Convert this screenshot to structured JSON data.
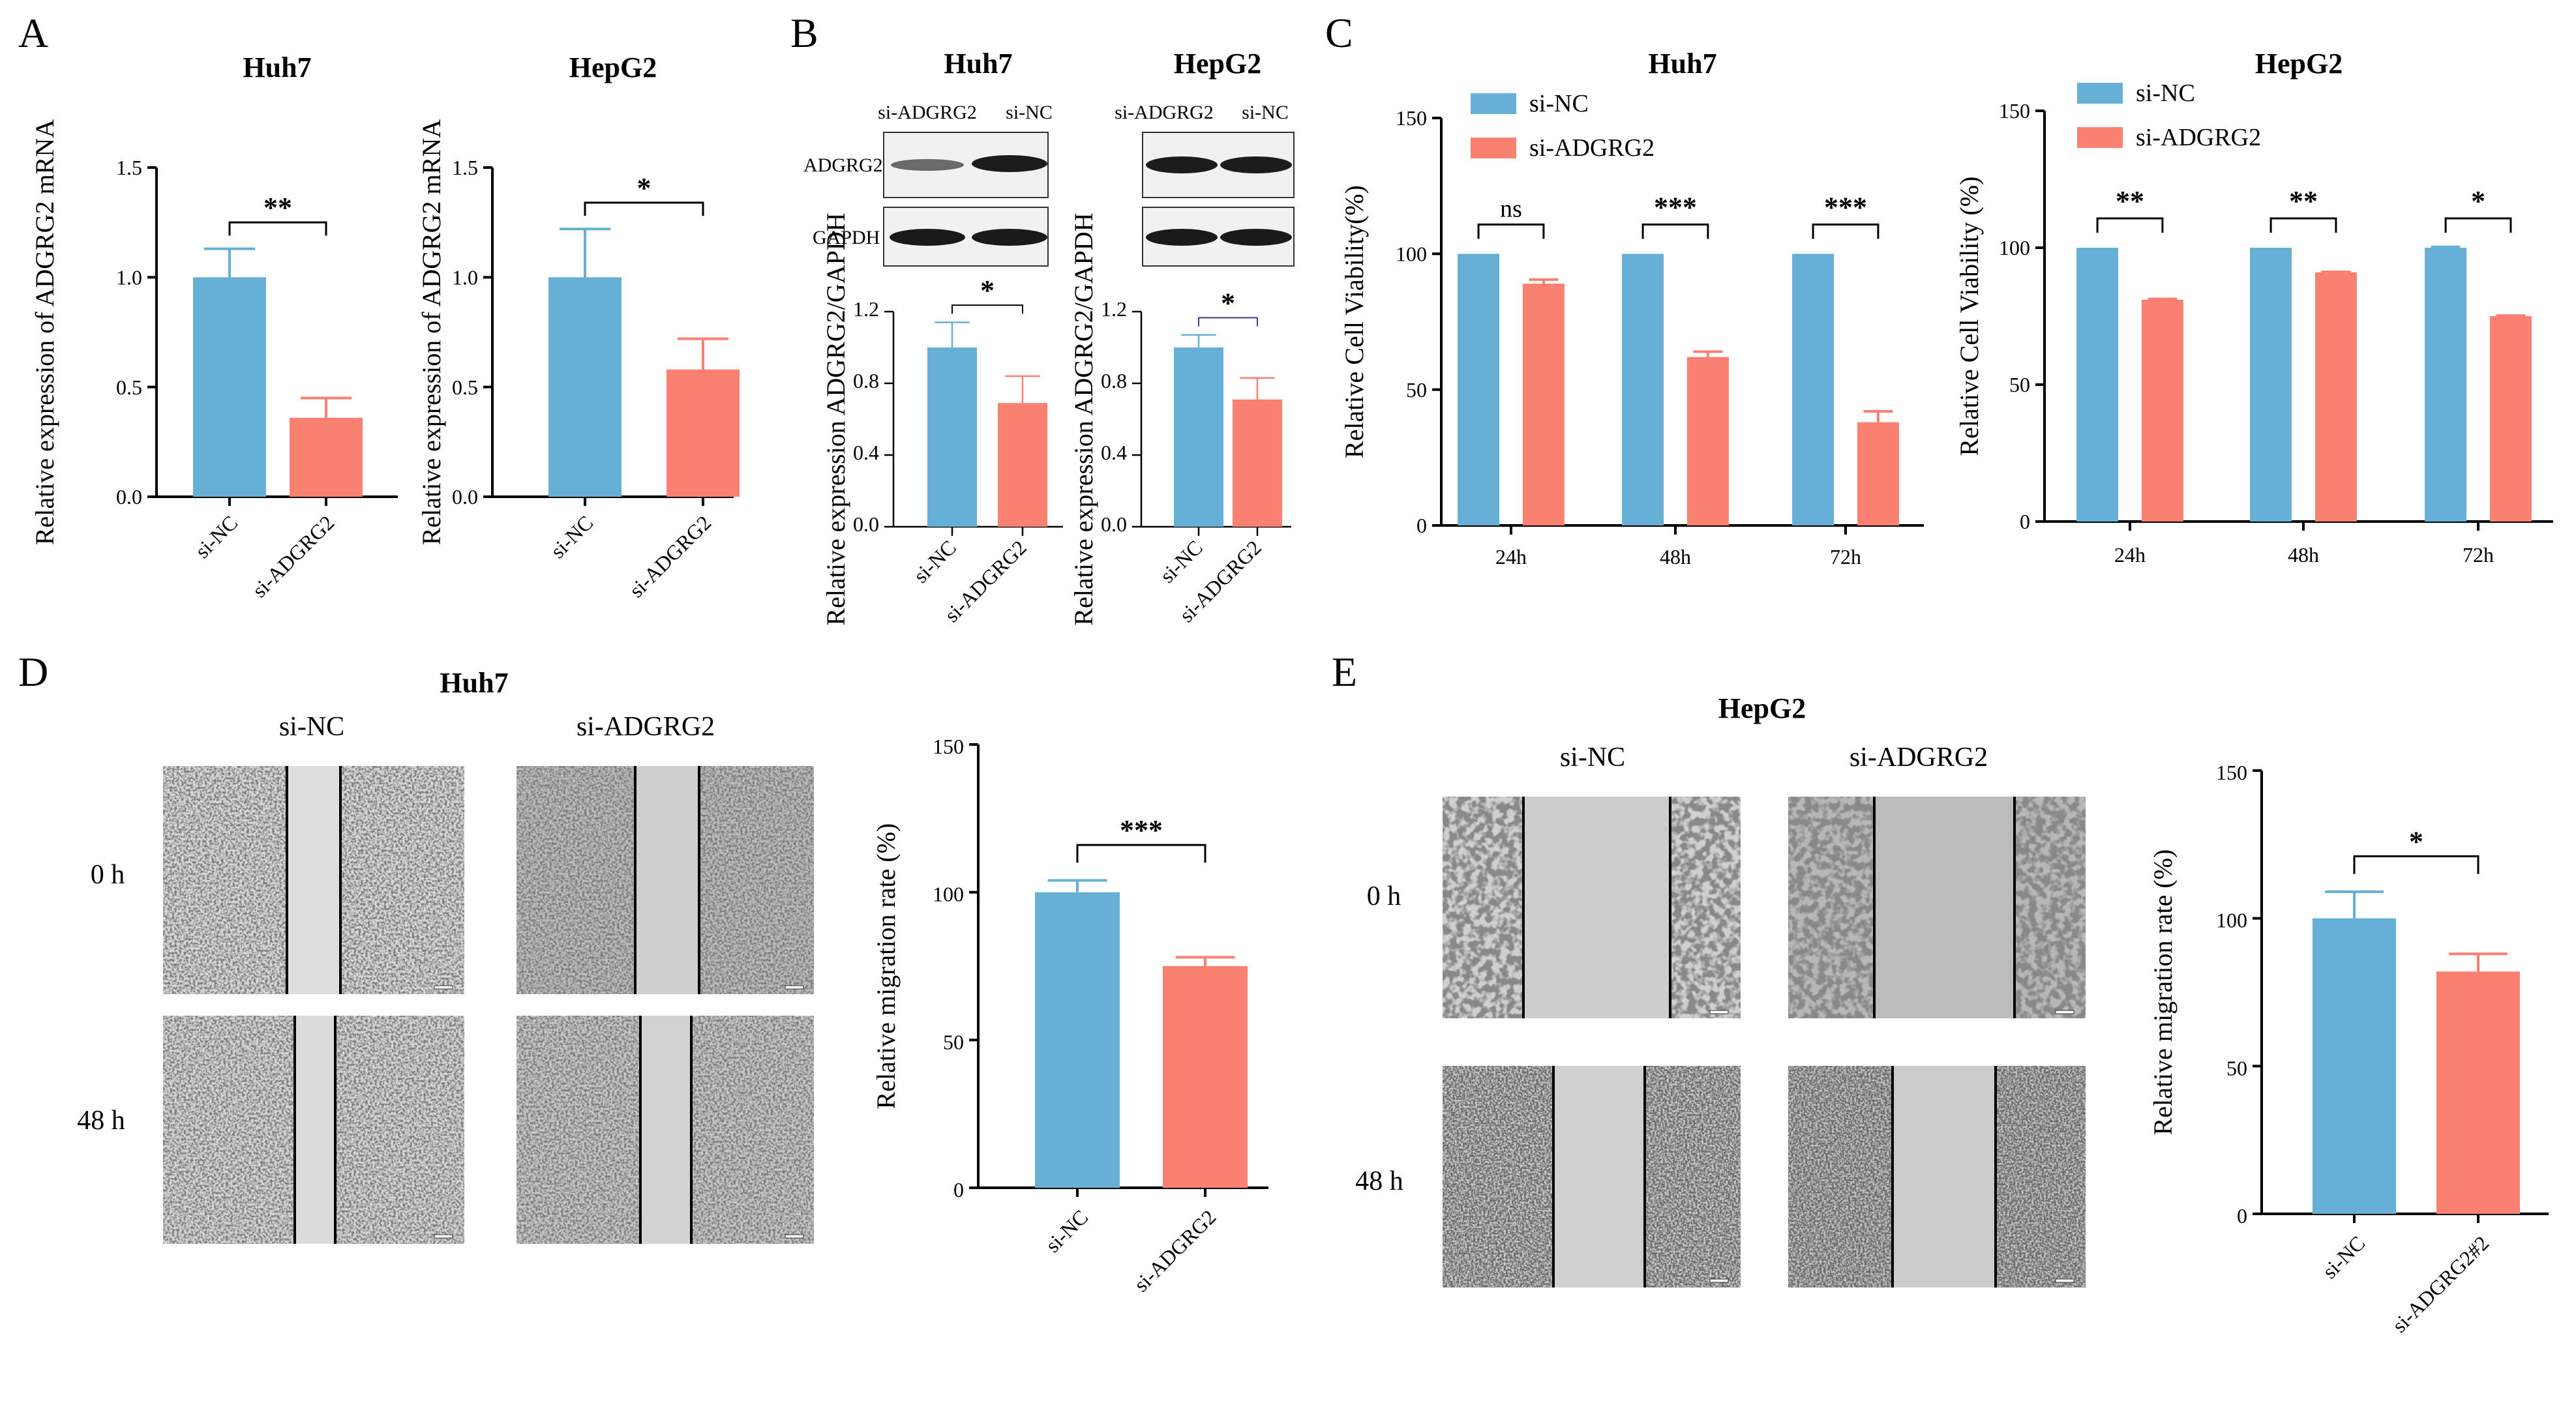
{
  "panel_letters": [
    "A",
    "B",
    "C",
    "D",
    "E"
  ],
  "colors": {
    "nc": "#66b0d6",
    "si": "#fa8072"
  },
  "panelB": {
    "left_title": "Huh7",
    "right_title": "HepG2",
    "lanes_left": [
      "si-ADGRG2",
      "si-NC"
    ],
    "lanes_right": [
      "si-ADGRG2",
      "si-NC"
    ],
    "row_labels": [
      "ADGRG2",
      "GAPDH"
    ]
  },
  "panelD": {
    "title": "Huh7",
    "col_labels": [
      "si-NC",
      "si-ADGRG2"
    ],
    "row_labels": [
      "0 h",
      "48 h"
    ]
  },
  "panelE": {
    "title": "HepG2",
    "col_labels": [
      "si-NC",
      "si-ADGRG2"
    ],
    "row_labels": [
      "0 h",
      "48 h"
    ]
  },
  "chart_data": [
    {
      "id": "A1",
      "type": "bar",
      "title": "Huh7",
      "ylabel": "Relative expression of ADGRG2 mRNA",
      "categories": [
        "si-NC",
        "si-ADGRG2"
      ],
      "values": [
        1.0,
        0.36
      ],
      "errors": [
        0.13,
        0.09
      ],
      "ylim": [
        0,
        1.5
      ],
      "yticks": [
        "0.0",
        "0.5",
        "1.0",
        "1.5"
      ],
      "significance": [
        {
          "from": 0,
          "to": 1,
          "label": "**"
        }
      ]
    },
    {
      "id": "A2",
      "type": "bar",
      "title": "HepG2",
      "ylabel": "Relative expression of ADGRG2 mRNA",
      "categories": [
        "si-NC",
        "si-ADGRG2"
      ],
      "values": [
        1.0,
        0.58
      ],
      "errors": [
        0.22,
        0.14
      ],
      "ylim": [
        0,
        1.5
      ],
      "yticks": [
        "0.0",
        "0.5",
        "1.0",
        "1.5"
      ],
      "significance": [
        {
          "from": 0,
          "to": 1,
          "label": "*"
        }
      ]
    },
    {
      "id": "B1",
      "type": "bar",
      "title": "",
      "ylabel": "Relative expression ADGRG2/GAPDH",
      "categories": [
        "si-NC",
        "si-ADGRG2"
      ],
      "values": [
        1.0,
        0.69
      ],
      "errors": [
        0.14,
        0.15
      ],
      "ylim": [
        0,
        1.2
      ],
      "yticks": [
        "0.0",
        "0.4",
        "0.8",
        "1.2"
      ],
      "significance": [
        {
          "from": 0,
          "to": 1,
          "label": "*"
        }
      ]
    },
    {
      "id": "B2",
      "type": "bar",
      "title": "",
      "ylabel": "Relative expression ADGRG2/GAPDH",
      "categories": [
        "si-NC",
        "si-ADGRG2"
      ],
      "values": [
        1.0,
        0.71
      ],
      "errors": [
        0.07,
        0.12
      ],
      "ylim": [
        0,
        1.2
      ],
      "yticks": [
        "0.0",
        "0.4",
        "0.8",
        "1.2"
      ],
      "significance": [
        {
          "from": 0,
          "to": 1,
          "label": "*"
        }
      ]
    },
    {
      "id": "C1",
      "type": "bar",
      "title": "Huh7",
      "ylabel": "Relative Cell Viability(%)",
      "categories": [
        "24h",
        "48h",
        "72h"
      ],
      "series": [
        {
          "name": "si-NC",
          "values": [
            100,
            100,
            100
          ],
          "errors": [
            0,
            0,
            0
          ]
        },
        {
          "name": "si-ADGRG2",
          "values": [
            89,
            62,
            38
          ],
          "errors": [
            1.5,
            2,
            4
          ]
        }
      ],
      "ylim": [
        0,
        150
      ],
      "yticks": [
        "0",
        "50",
        "100",
        "150"
      ],
      "legend": "top-left",
      "significance": [
        {
          "group": 0,
          "label": "ns"
        },
        {
          "group": 1,
          "label": "***"
        },
        {
          "group": 2,
          "label": "***"
        }
      ]
    },
    {
      "id": "C2",
      "type": "bar",
      "title": "HepG2",
      "ylabel": "Relative Cell Viability (%)",
      "categories": [
        "24h",
        "48h",
        "72h"
      ],
      "series": [
        {
          "name": "si-NC",
          "values": [
            100,
            100,
            100
          ],
          "errors": [
            0,
            0,
            0.3
          ]
        },
        {
          "name": "si-ADGRG2",
          "values": [
            81,
            91,
            75
          ],
          "errors": [
            0.3,
            0.2,
            0.2
          ]
        }
      ],
      "ylim": [
        0,
        150
      ],
      "yticks": [
        "0",
        "50",
        "100",
        "150"
      ],
      "legend": "top-left",
      "significance": [
        {
          "group": 0,
          "label": "**"
        },
        {
          "group": 1,
          "label": "**"
        },
        {
          "group": 2,
          "label": "*"
        }
      ]
    },
    {
      "id": "D",
      "type": "bar",
      "title": "",
      "ylabel": "Relative migration rate (%)",
      "categories": [
        "si-NC",
        "si-ADGRG2"
      ],
      "values": [
        100,
        75
      ],
      "errors": [
        4,
        3
      ],
      "ylim": [
        0,
        150
      ],
      "yticks": [
        "0",
        "50",
        "100",
        "150"
      ],
      "significance": [
        {
          "from": 0,
          "to": 1,
          "label": "***"
        }
      ]
    },
    {
      "id": "E",
      "type": "bar",
      "title": "",
      "ylabel": "Relative migration rate (%)",
      "categories": [
        "si-NC",
        "si-ADGRG2#2"
      ],
      "values": [
        100,
        82
      ],
      "errors": [
        9,
        6
      ],
      "ylim": [
        0,
        150
      ],
      "yticks": [
        "0",
        "50",
        "100",
        "150"
      ],
      "significance": [
        {
          "from": 0,
          "to": 1,
          "label": "*"
        }
      ]
    }
  ]
}
